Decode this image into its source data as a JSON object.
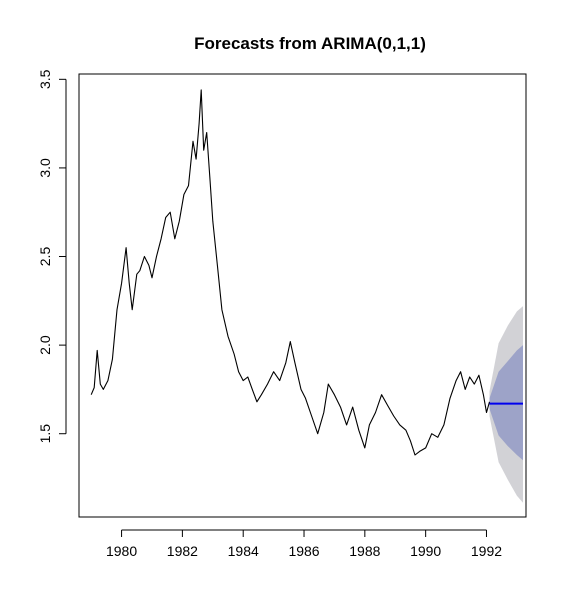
{
  "chart_data": {
    "type": "line",
    "title": "Forecasts from ARIMA(0,1,1)",
    "xlabel": "",
    "ylabel": "",
    "xlim": [
      1978.6,
      1993.3
    ],
    "ylim": [
      1.03,
      3.53
    ],
    "x_ticks": [
      1980,
      1982,
      1984,
      1986,
      1988,
      1990,
      1992
    ],
    "x_tick_labels": [
      "1980",
      "1982",
      "1984",
      "1986",
      "1988",
      "1990",
      "1992"
    ],
    "y_ticks": [
      1.5,
      2.0,
      2.5,
      3.0,
      3.5
    ],
    "y_tick_labels": [
      "1.5",
      "2.0",
      "2.5",
      "3.0",
      "3.5"
    ],
    "grid": false,
    "legend": "none",
    "series": [
      {
        "role": "observed",
        "color": "#000000",
        "x": [
          1979.0,
          1979.1,
          1979.2,
          1979.3,
          1979.4,
          1979.55,
          1979.7,
          1979.85,
          1980.0,
          1980.15,
          1980.25,
          1980.35,
          1980.5,
          1980.6,
          1980.75,
          1980.9,
          1981.0,
          1981.15,
          1981.3,
          1981.45,
          1981.6,
          1981.75,
          1981.9,
          1982.05,
          1982.2,
          1982.35,
          1982.45,
          1982.55,
          1982.62,
          1982.7,
          1982.8,
          1982.9,
          1983.0,
          1983.15,
          1983.3,
          1983.5,
          1983.7,
          1983.85,
          1984.0,
          1984.15,
          1984.3,
          1984.45,
          1984.6,
          1984.8,
          1985.0,
          1985.2,
          1985.4,
          1985.55,
          1985.7,
          1985.9,
          1986.05,
          1986.25,
          1986.45,
          1986.65,
          1986.8,
          1987.0,
          1987.2,
          1987.4,
          1987.6,
          1987.8,
          1988.0,
          1988.15,
          1988.35,
          1988.55,
          1988.75,
          1988.95,
          1989.15,
          1989.35,
          1989.5,
          1989.65,
          1989.8,
          1990.0,
          1990.2,
          1990.4,
          1990.6,
          1990.8,
          1991.0,
          1991.15,
          1991.3,
          1991.45,
          1991.6,
          1991.75,
          1991.9,
          1992.0,
          1992.1
        ],
        "y": [
          1.72,
          1.76,
          1.97,
          1.78,
          1.75,
          1.8,
          1.92,
          2.2,
          2.35,
          2.55,
          2.35,
          2.2,
          2.4,
          2.42,
          2.5,
          2.45,
          2.38,
          2.5,
          2.6,
          2.72,
          2.75,
          2.6,
          2.7,
          2.85,
          2.9,
          3.15,
          3.05,
          3.25,
          3.44,
          3.1,
          3.2,
          2.95,
          2.7,
          2.45,
          2.2,
          2.05,
          1.95,
          1.85,
          1.8,
          1.82,
          1.75,
          1.68,
          1.72,
          1.78,
          1.85,
          1.8,
          1.9,
          2.02,
          1.9,
          1.75,
          1.7,
          1.6,
          1.5,
          1.62,
          1.78,
          1.72,
          1.65,
          1.55,
          1.65,
          1.52,
          1.42,
          1.55,
          1.62,
          1.72,
          1.66,
          1.6,
          1.55,
          1.52,
          1.46,
          1.38,
          1.4,
          1.42,
          1.5,
          1.48,
          1.55,
          1.7,
          1.8,
          1.85,
          1.75,
          1.82,
          1.78,
          1.83,
          1.72,
          1.62,
          1.68
        ]
      },
      {
        "role": "point-forecast",
        "color": "#0000ee",
        "x": [
          1992.1,
          1993.2
        ],
        "y": [
          1.67,
          1.67
        ]
      }
    ],
    "intervals": [
      {
        "level": "95%",
        "color": "#d2d2d6",
        "x": [
          1992.1,
          1992.4,
          1992.7,
          1993.0,
          1993.2
        ],
        "lower": [
          1.6,
          1.34,
          1.24,
          1.15,
          1.11
        ],
        "upper": [
          1.74,
          2.01,
          2.11,
          2.19,
          2.22
        ]
      },
      {
        "level": "80%",
        "color": "#9da3c8",
        "x": [
          1992.1,
          1992.4,
          1992.7,
          1993.0,
          1993.2
        ],
        "lower": [
          1.64,
          1.49,
          1.43,
          1.38,
          1.35
        ],
        "upper": [
          1.7,
          1.85,
          1.91,
          1.97,
          2.0
        ]
      }
    ]
  }
}
